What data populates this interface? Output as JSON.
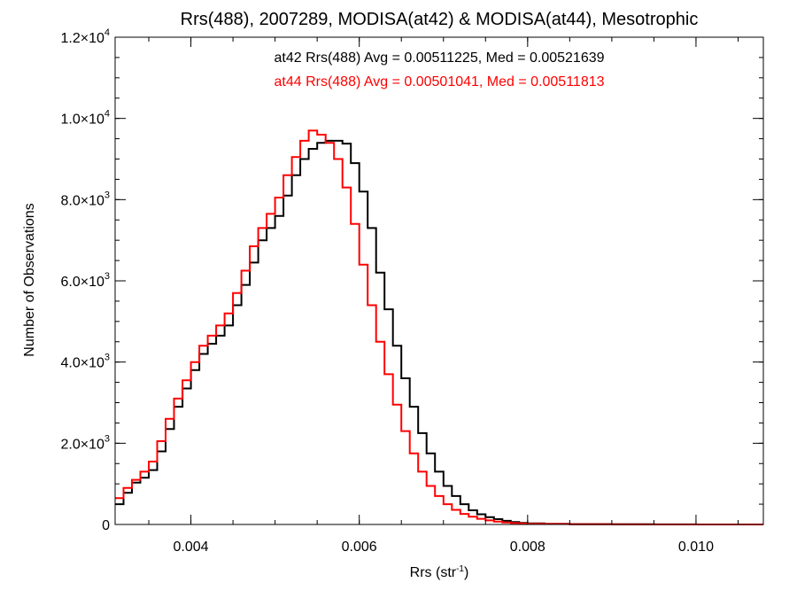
{
  "chart_data": {
    "type": "line",
    "title": "Rrs(488), 2007289, MODISA(at42) & MODISA(at44), Mesotrophic",
    "xlabel": {
      "base": "Rrs (str",
      "sup": "-1",
      "close": ")"
    },
    "ylabel": "Number of Observations",
    "xlim": [
      0.0031,
      0.0108
    ],
    "ylim": [
      0,
      12000
    ],
    "x_ticks": [
      {
        "value": 0.004,
        "label": "0.004"
      },
      {
        "value": 0.006,
        "label": "0.006"
      },
      {
        "value": 0.008,
        "label": "0.008"
      },
      {
        "value": 0.01,
        "label": "0.010"
      }
    ],
    "y_ticks": [
      {
        "value": 0,
        "mantissa": "0",
        "exp": ""
      },
      {
        "value": 2000,
        "mantissa": "2.0×10",
        "exp": "3"
      },
      {
        "value": 4000,
        "mantissa": "4.0×10",
        "exp": "3"
      },
      {
        "value": 6000,
        "mantissa": "6.0×10",
        "exp": "3"
      },
      {
        "value": 8000,
        "mantissa": "8.0×10",
        "exp": "3"
      },
      {
        "value": 10000,
        "mantissa": "1.0×10",
        "exp": "4"
      },
      {
        "value": 12000,
        "mantissa": "1.2×10",
        "exp": "4"
      }
    ],
    "x_minor_step": 0.0005,
    "y_minor_step": 500,
    "grid": false,
    "annotations": [
      {
        "text": "at42 Rrs(488) Avg = 0.00511225, Med = 0.00521639",
        "color": "#000000"
      },
      {
        "text": "at44 Rrs(488) Avg = 0.00501041, Med = 0.00511813",
        "color": "#ff0000"
      }
    ],
    "series": [
      {
        "name": "at42",
        "color": "#000000",
        "points": [
          [
            0.0031,
            500
          ],
          [
            0.0032,
            780
          ],
          [
            0.0033,
            1030
          ],
          [
            0.0034,
            1150
          ],
          [
            0.0035,
            1340
          ],
          [
            0.0036,
            1800
          ],
          [
            0.0037,
            2350
          ],
          [
            0.0038,
            2900
          ],
          [
            0.0039,
            3350
          ],
          [
            0.004,
            3800
          ],
          [
            0.0041,
            4200
          ],
          [
            0.0042,
            4450
          ],
          [
            0.0043,
            4650
          ],
          [
            0.0044,
            4900
          ],
          [
            0.0045,
            5400
          ],
          [
            0.0046,
            5900
          ],
          [
            0.0047,
            6450
          ],
          [
            0.0048,
            7000
          ],
          [
            0.0049,
            7300
          ],
          [
            0.005,
            7600
          ],
          [
            0.0051,
            8100
          ],
          [
            0.0052,
            8600
          ],
          [
            0.0053,
            9000
          ],
          [
            0.0054,
            9250
          ],
          [
            0.0055,
            9400
          ],
          [
            0.0056,
            9450
          ],
          [
            0.0057,
            9450
          ],
          [
            0.0058,
            9380
          ],
          [
            0.0059,
            8900
          ],
          [
            0.006,
            8200
          ],
          [
            0.0061,
            7300
          ],
          [
            0.0062,
            6200
          ],
          [
            0.0063,
            5300
          ],
          [
            0.0064,
            4400
          ],
          [
            0.0065,
            3600
          ],
          [
            0.0066,
            2900
          ],
          [
            0.0067,
            2250
          ],
          [
            0.0068,
            1750
          ],
          [
            0.0069,
            1300
          ],
          [
            0.007,
            950
          ],
          [
            0.0071,
            700
          ],
          [
            0.0072,
            500
          ],
          [
            0.0073,
            350
          ],
          [
            0.0074,
            250
          ],
          [
            0.0075,
            180
          ],
          [
            0.0076,
            130
          ],
          [
            0.0077,
            90
          ],
          [
            0.0078,
            60
          ],
          [
            0.0079,
            40
          ],
          [
            0.008,
            28
          ],
          [
            0.0082,
            15
          ],
          [
            0.0085,
            8
          ],
          [
            0.009,
            4
          ],
          [
            0.0095,
            2
          ],
          [
            0.01,
            1
          ],
          [
            0.0108,
            0
          ]
        ]
      },
      {
        "name": "at44",
        "color": "#ff0000",
        "points": [
          [
            0.0031,
            650
          ],
          [
            0.0032,
            900
          ],
          [
            0.0033,
            1100
          ],
          [
            0.0034,
            1300
          ],
          [
            0.0035,
            1550
          ],
          [
            0.0036,
            2050
          ],
          [
            0.0037,
            2600
          ],
          [
            0.0038,
            3100
          ],
          [
            0.0039,
            3550
          ],
          [
            0.004,
            4000
          ],
          [
            0.0041,
            4400
          ],
          [
            0.0042,
            4650
          ],
          [
            0.0043,
            4900
          ],
          [
            0.0044,
            5200
          ],
          [
            0.0045,
            5700
          ],
          [
            0.0046,
            6250
          ],
          [
            0.0047,
            6850
          ],
          [
            0.0048,
            7300
          ],
          [
            0.0049,
            7650
          ],
          [
            0.005,
            8050
          ],
          [
            0.0051,
            8600
          ],
          [
            0.0052,
            9050
          ],
          [
            0.0053,
            9450
          ],
          [
            0.0054,
            9700
          ],
          [
            0.0055,
            9600
          ],
          [
            0.0056,
            9400
          ],
          [
            0.0057,
            9000
          ],
          [
            0.0058,
            8300
          ],
          [
            0.0059,
            7400
          ],
          [
            0.006,
            6400
          ],
          [
            0.0061,
            5400
          ],
          [
            0.0062,
            4500
          ],
          [
            0.0063,
            3700
          ],
          [
            0.0064,
            2950
          ],
          [
            0.0065,
            2300
          ],
          [
            0.0066,
            1750
          ],
          [
            0.0067,
            1300
          ],
          [
            0.0068,
            950
          ],
          [
            0.0069,
            700
          ],
          [
            0.007,
            500
          ],
          [
            0.0071,
            360
          ],
          [
            0.0072,
            260
          ],
          [
            0.0073,
            190
          ],
          [
            0.0074,
            140
          ],
          [
            0.0075,
            100
          ],
          [
            0.0076,
            70
          ],
          [
            0.0077,
            50
          ],
          [
            0.0078,
            35
          ],
          [
            0.0079,
            25
          ],
          [
            0.008,
            18
          ],
          [
            0.0082,
            10
          ],
          [
            0.0085,
            5
          ],
          [
            0.009,
            2
          ],
          [
            0.0095,
            1
          ],
          [
            0.01,
            0
          ],
          [
            0.0108,
            0
          ]
        ]
      }
    ]
  }
}
